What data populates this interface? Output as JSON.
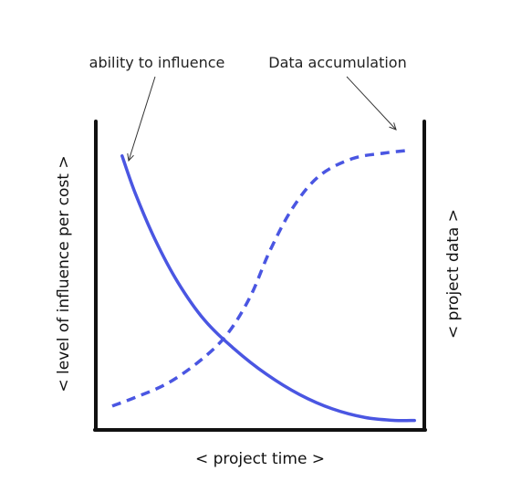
{
  "chart_data": {
    "type": "line",
    "title": "",
    "xlabel": "< project time >",
    "ylabel": "< level of influence per cost >",
    "y2label": "< project data >",
    "xlim": [
      0,
      1
    ],
    "ylim": [
      0,
      1
    ],
    "grid": false,
    "series": [
      {
        "name": "ability to influence",
        "style": "solid",
        "color": "#4a56e2",
        "points": [
          [
            0.08,
            0.95
          ],
          [
            0.12,
            0.82
          ],
          [
            0.18,
            0.66
          ],
          [
            0.25,
            0.51
          ],
          [
            0.33,
            0.38
          ],
          [
            0.42,
            0.28
          ],
          [
            0.52,
            0.19
          ],
          [
            0.62,
            0.12
          ],
          [
            0.72,
            0.07
          ],
          [
            0.82,
            0.04
          ],
          [
            0.91,
            0.03
          ],
          [
            0.97,
            0.03
          ]
        ]
      },
      {
        "name": "Data accumulation",
        "style": "dashed",
        "color": "#4a56e2",
        "points": [
          [
            0.05,
            0.08
          ],
          [
            0.12,
            0.11
          ],
          [
            0.22,
            0.16
          ],
          [
            0.32,
            0.24
          ],
          [
            0.4,
            0.33
          ],
          [
            0.47,
            0.46
          ],
          [
            0.53,
            0.62
          ],
          [
            0.6,
            0.77
          ],
          [
            0.68,
            0.88
          ],
          [
            0.78,
            0.94
          ],
          [
            0.88,
            0.96
          ],
          [
            0.96,
            0.97
          ]
        ]
      }
    ],
    "annotations": [
      {
        "text": "ability to influence",
        "target_series": 0
      },
      {
        "text": "Data accumulation",
        "target_series": 1
      }
    ]
  }
}
